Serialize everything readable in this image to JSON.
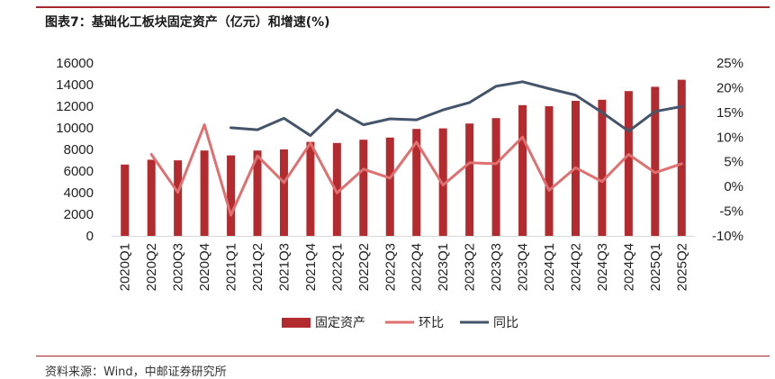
{
  "header": {
    "title": "图表7：基础化工板块固定资产（亿元）和增速(%)"
  },
  "footer": {
    "source": "资料来源：Wind，中邮证券研究所"
  },
  "chart_data": {
    "type": "bar",
    "categories": [
      "2020Q1",
      "2020Q2",
      "2020Q3",
      "2020Q4",
      "2021Q1",
      "2021Q2",
      "2021Q3",
      "2021Q4",
      "2022Q1",
      "2022Q2",
      "2022Q3",
      "2022Q4",
      "2023Q1",
      "2023Q2",
      "2023Q3",
      "2023Q4",
      "2024Q1",
      "2024Q2",
      "2024Q3",
      "2024Q4",
      "2025Q1",
      "2025Q2"
    ],
    "series": [
      {
        "name": "固定资产",
        "type": "bar",
        "axis": "left",
        "color": "#b32b2e",
        "values": [
          6600,
          7050,
          6990,
          7900,
          7450,
          7900,
          8000,
          8700,
          8600,
          8900,
          9100,
          9900,
          9950,
          10400,
          10900,
          12100,
          12000,
          12500,
          12600,
          13400,
          13800,
          14450
        ]
      },
      {
        "name": "环比",
        "type": "line",
        "axis": "right",
        "color": "#e07070",
        "values": [
          null,
          6.5,
          -1.2,
          12.5,
          -5.8,
          6.2,
          0.8,
          8.8,
          -1.3,
          3.5,
          1.7,
          9.0,
          0.3,
          4.8,
          4.6,
          10.0,
          -0.8,
          3.8,
          1.0,
          6.5,
          2.8,
          4.6
        ]
      },
      {
        "name": "同比",
        "type": "line",
        "axis": "right",
        "color": "#44546a",
        "values": [
          null,
          null,
          null,
          null,
          11.9,
          11.5,
          13.8,
          10.3,
          15.5,
          12.5,
          13.7,
          13.5,
          15.5,
          17.0,
          20.3,
          21.2,
          19.8,
          18.5,
          15.0,
          11.2,
          15.2,
          16.2
        ]
      }
    ],
    "left_axis": {
      "ylim": [
        0,
        16000
      ],
      "ticks": [
        "0",
        "2000",
        "4000",
        "6000",
        "8000",
        "10000",
        "12000",
        "14000",
        "16000"
      ]
    },
    "right_axis": {
      "ylim": [
        -10,
        25
      ],
      "ticks": [
        "-10%",
        "-5%",
        "0%",
        "5%",
        "10%",
        "15%",
        "20%",
        "25%"
      ]
    },
    "grid": false,
    "legend": {
      "placement": "bottom",
      "entries": [
        "固定资产",
        "环比",
        "同比"
      ]
    }
  }
}
